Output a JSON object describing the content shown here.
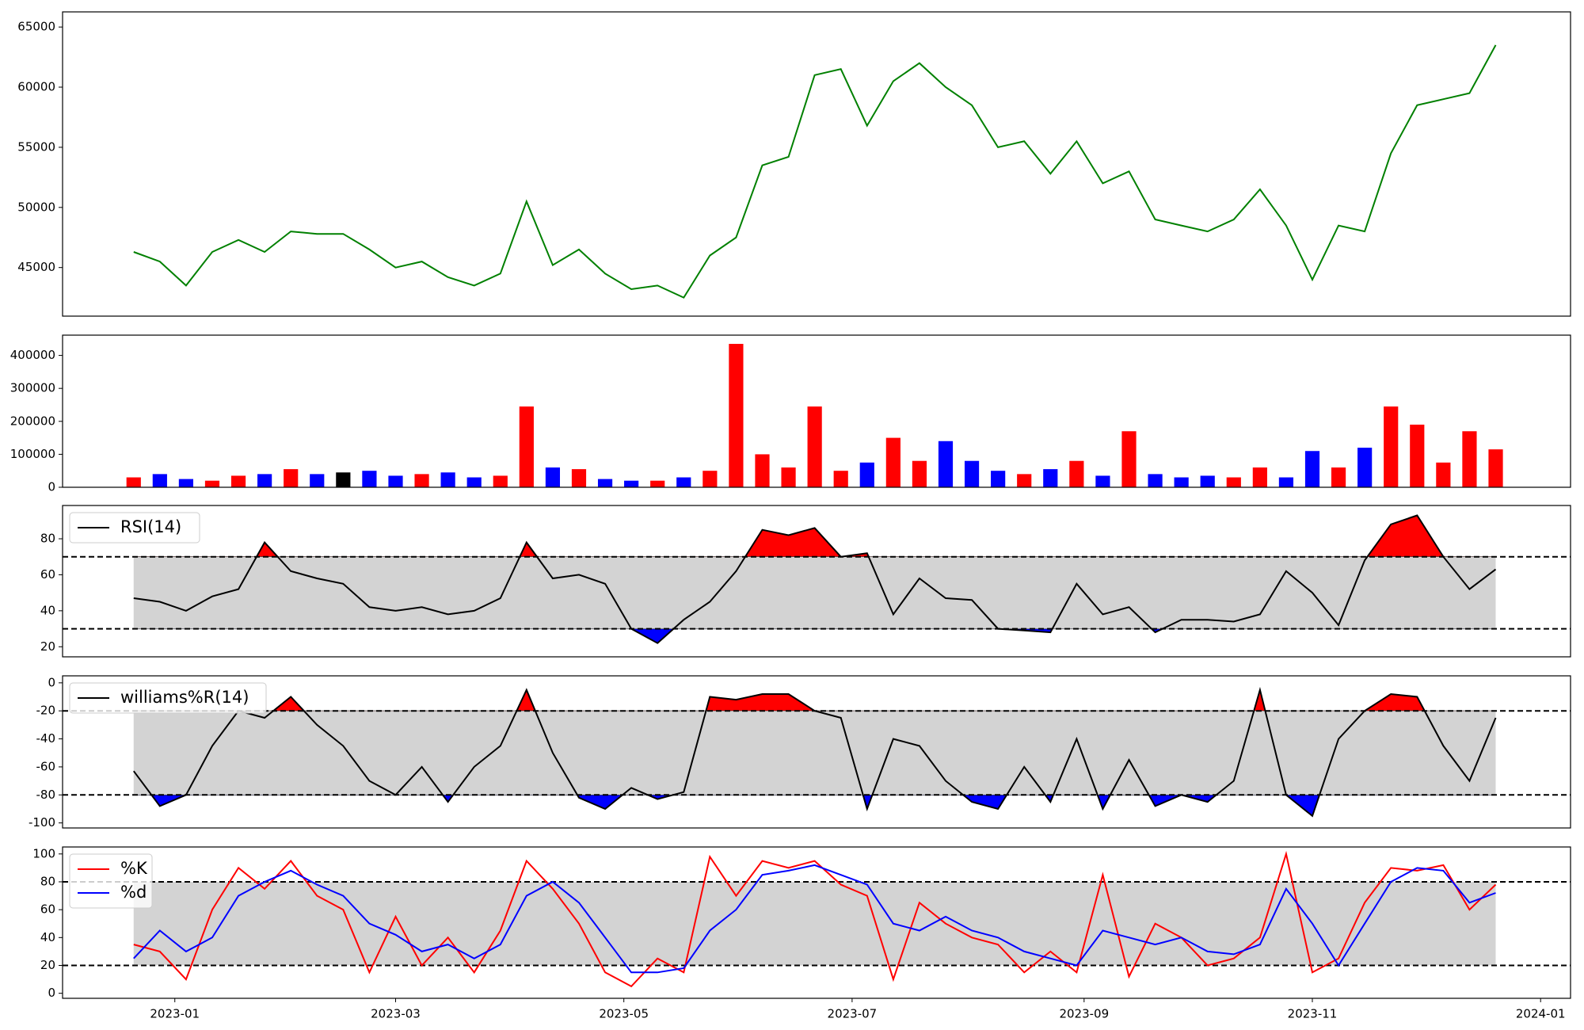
{
  "chart_data": [
    {
      "type": "line",
      "x": [
        "2022-12-21",
        "2022-12-28",
        "2023-01-04",
        "2023-01-11",
        "2023-01-18",
        "2023-01-25",
        "2023-02-01",
        "2023-02-08",
        "2023-02-15",
        "2023-02-22",
        "2023-03-01",
        "2023-03-08",
        "2023-03-15",
        "2023-03-22",
        "2023-03-29",
        "2023-04-05",
        "2023-04-12",
        "2023-04-19",
        "2023-04-26",
        "2023-05-03",
        "2023-05-10",
        "2023-05-17",
        "2023-05-24",
        "2023-05-31",
        "2023-06-07",
        "2023-06-14",
        "2023-06-21",
        "2023-06-28",
        "2023-07-05",
        "2023-07-12",
        "2023-07-19",
        "2023-07-26",
        "2023-08-02",
        "2023-08-09",
        "2023-08-16",
        "2023-08-23",
        "2023-08-30",
        "2023-09-06",
        "2023-09-13",
        "2023-09-20",
        "2023-09-27",
        "2023-10-04",
        "2023-10-11",
        "2023-10-18",
        "2023-10-25",
        "2023-11-01",
        "2023-11-08",
        "2023-11-15",
        "2023-11-22",
        "2023-11-29",
        "2023-12-06",
        "2023-12-13",
        "2023-12-20"
      ],
      "values": [
        46300,
        45500,
        43500,
        46300,
        47300,
        46300,
        48000,
        47800,
        47800,
        46500,
        45000,
        45500,
        44200,
        43500,
        44500,
        50500,
        45200,
        46500,
        44500,
        43200,
        43500,
        42500,
        46000,
        47500,
        53500,
        54200,
        61000,
        61500,
        56800,
        60500,
        62000,
        60000,
        58500,
        55000,
        55500,
        52800,
        55500,
        52000,
        53000,
        49000,
        48500,
        48000,
        49000,
        51500,
        48500,
        44000,
        48500,
        48000,
        54500,
        58500,
        59000,
        59500,
        63500
      ],
      "color": "green",
      "xlim": [
        "2022-12-02",
        "2024-01-09"
      ],
      "ylim": [
        40960,
        66260
      ],
      "yticks": [
        45000,
        50000,
        55000,
        60000,
        65000
      ]
    },
    {
      "type": "bar",
      "x": [
        "2022-12-21",
        "2022-12-28",
        "2023-01-04",
        "2023-01-11",
        "2023-01-18",
        "2023-01-25",
        "2023-02-01",
        "2023-02-08",
        "2023-02-15",
        "2023-02-22",
        "2023-03-01",
        "2023-03-08",
        "2023-03-15",
        "2023-03-22",
        "2023-03-29",
        "2023-04-05",
        "2023-04-12",
        "2023-04-19",
        "2023-04-26",
        "2023-05-03",
        "2023-05-10",
        "2023-05-17",
        "2023-05-24",
        "2023-05-31",
        "2023-06-07",
        "2023-06-14",
        "2023-06-21",
        "2023-06-28",
        "2023-07-05",
        "2023-07-12",
        "2023-07-19",
        "2023-07-26",
        "2023-08-02",
        "2023-08-09",
        "2023-08-16",
        "2023-08-23",
        "2023-08-30",
        "2023-09-06",
        "2023-09-13",
        "2023-09-20",
        "2023-09-27",
        "2023-10-04",
        "2023-10-11",
        "2023-10-18",
        "2023-10-25",
        "2023-11-01",
        "2023-11-08",
        "2023-11-15",
        "2023-11-22",
        "2023-11-29",
        "2023-12-06",
        "2023-12-13",
        "2023-12-20"
      ],
      "values": [
        30000,
        40000,
        25000,
        20000,
        35000,
        40000,
        55000,
        40000,
        45000,
        50000,
        35000,
        40000,
        45000,
        30000,
        35000,
        245000,
        60000,
        55000,
        25000,
        20000,
        20000,
        30000,
        50000,
        435000,
        100000,
        60000,
        245000,
        50000,
        75000,
        150000,
        80000,
        140000,
        80000,
        50000,
        40000,
        55000,
        80000,
        35000,
        170000,
        40000,
        30000,
        35000,
        30000,
        60000,
        30000,
        110000,
        60000,
        120000,
        245000,
        190000,
        75000,
        170000,
        115000
      ],
      "colors": [
        "red",
        "blue",
        "blue",
        "red",
        "red",
        "blue",
        "red",
        "blue",
        "black",
        "blue",
        "blue",
        "red",
        "blue",
        "blue",
        "red",
        "red",
        "blue",
        "red",
        "blue",
        "blue",
        "red",
        "blue",
        "red",
        "red",
        "red",
        "red",
        "red",
        "red",
        "blue",
        "red",
        "red",
        "blue",
        "blue",
        "blue",
        "red",
        "blue",
        "red",
        "blue",
        "red",
        "blue",
        "blue",
        "blue",
        "red",
        "red",
        "blue",
        "blue",
        "red",
        "blue",
        "red",
        "red",
        "red",
        "red",
        "red"
      ],
      "xlim": [
        "2022-12-02",
        "2024-01-09"
      ],
      "ylim": [
        0,
        461500
      ],
      "yticks": [
        0,
        100000,
        200000,
        300000,
        400000
      ]
    },
    {
      "type": "oscillator",
      "x": [
        "2022-12-21",
        "2022-12-28",
        "2023-01-04",
        "2023-01-11",
        "2023-01-18",
        "2023-01-25",
        "2023-02-01",
        "2023-02-08",
        "2023-02-15",
        "2023-02-22",
        "2023-03-01",
        "2023-03-08",
        "2023-03-15",
        "2023-03-22",
        "2023-03-29",
        "2023-04-05",
        "2023-04-12",
        "2023-04-19",
        "2023-04-26",
        "2023-05-03",
        "2023-05-10",
        "2023-05-17",
        "2023-05-24",
        "2023-05-31",
        "2023-06-07",
        "2023-06-14",
        "2023-06-21",
        "2023-06-28",
        "2023-07-05",
        "2023-07-12",
        "2023-07-19",
        "2023-07-26",
        "2023-08-02",
        "2023-08-09",
        "2023-08-16",
        "2023-08-23",
        "2023-08-30",
        "2023-09-06",
        "2023-09-13",
        "2023-09-20",
        "2023-09-27",
        "2023-10-04",
        "2023-10-11",
        "2023-10-18",
        "2023-10-25",
        "2023-11-01",
        "2023-11-08",
        "2023-11-15",
        "2023-11-22",
        "2023-11-29",
        "2023-12-06",
        "2023-12-13",
        "2023-12-20"
      ],
      "series": [
        {
          "name": "RSI(14)",
          "color": "black",
          "values": [
            47,
            45,
            40,
            48,
            52,
            78,
            62,
            58,
            55,
            42,
            40,
            42,
            38,
            40,
            47,
            78,
            58,
            60,
            55,
            30,
            22,
            35,
            45,
            62,
            85,
            82,
            86,
            70,
            72,
            38,
            58,
            47,
            46,
            30,
            29,
            28,
            55,
            38,
            42,
            28,
            35,
            35,
            34,
            38,
            62,
            50,
            32,
            68,
            88,
            93,
            70,
            52,
            63
          ]
        }
      ],
      "upper": 70,
      "lower": 30,
      "fill_extremes": true,
      "legend": "upper left",
      "xlim": [
        "2022-12-02",
        "2024-01-09"
      ],
      "ylim": [
        14.4,
        98.5
      ],
      "yticks": [
        20,
        40,
        60,
        80
      ]
    },
    {
      "type": "oscillator",
      "x": [
        "2022-12-21",
        "2022-12-28",
        "2023-01-04",
        "2023-01-11",
        "2023-01-18",
        "2023-01-25",
        "2023-02-01",
        "2023-02-08",
        "2023-02-15",
        "2023-02-22",
        "2023-03-01",
        "2023-03-08",
        "2023-03-15",
        "2023-03-22",
        "2023-03-29",
        "2023-04-05",
        "2023-04-12",
        "2023-04-19",
        "2023-04-26",
        "2023-05-03",
        "2023-05-10",
        "2023-05-17",
        "2023-05-24",
        "2023-05-31",
        "2023-06-07",
        "2023-06-14",
        "2023-06-21",
        "2023-06-28",
        "2023-07-05",
        "2023-07-12",
        "2023-07-19",
        "2023-07-26",
        "2023-08-02",
        "2023-08-09",
        "2023-08-16",
        "2023-08-23",
        "2023-08-30",
        "2023-09-06",
        "2023-09-13",
        "2023-09-20",
        "2023-09-27",
        "2023-10-04",
        "2023-10-11",
        "2023-10-18",
        "2023-10-25",
        "2023-11-01",
        "2023-11-08",
        "2023-11-15",
        "2023-11-22",
        "2023-11-29",
        "2023-12-06",
        "2023-12-13",
        "2023-12-20"
      ],
      "series": [
        {
          "name": "williams%R(14)",
          "color": "black",
          "values": [
            -63,
            -88,
            -80,
            -45,
            -20,
            -25,
            -10,
            -30,
            -45,
            -70,
            -80,
            -60,
            -85,
            -60,
            -45,
            -5,
            -50,
            -82,
            -90,
            -75,
            -83,
            -78,
            -10,
            -12,
            -8,
            -8,
            -20,
            -25,
            -90,
            -40,
            -45,
            -70,
            -85,
            -90,
            -60,
            -85,
            -40,
            -90,
            -55,
            -88,
            -80,
            -85,
            -70,
            -5,
            -80,
            -95,
            -40,
            -20,
            -8,
            -10,
            -45,
            -70,
            -25
          ]
        }
      ],
      "upper": -20,
      "lower": -80,
      "fill_extremes": true,
      "legend": "upper left",
      "xlim": [
        "2022-12-02",
        "2024-01-09"
      ],
      "ylim": [
        -103.6,
        5
      ],
      "yticks": [
        -100,
        -80,
        -60,
        -40,
        -20,
        0
      ]
    },
    {
      "type": "oscillator",
      "x": [
        "2022-12-21",
        "2022-12-28",
        "2023-01-04",
        "2023-01-11",
        "2023-01-18",
        "2023-01-25",
        "2023-02-01",
        "2023-02-08",
        "2023-02-15",
        "2023-02-22",
        "2023-03-01",
        "2023-03-08",
        "2023-03-15",
        "2023-03-22",
        "2023-03-29",
        "2023-04-05",
        "2023-04-12",
        "2023-04-19",
        "2023-04-26",
        "2023-05-03",
        "2023-05-10",
        "2023-05-17",
        "2023-05-24",
        "2023-05-31",
        "2023-06-07",
        "2023-06-14",
        "2023-06-21",
        "2023-06-28",
        "2023-07-05",
        "2023-07-12",
        "2023-07-19",
        "2023-07-26",
        "2023-08-02",
        "2023-08-09",
        "2023-08-16",
        "2023-08-23",
        "2023-08-30",
        "2023-09-06",
        "2023-09-13",
        "2023-09-20",
        "2023-09-27",
        "2023-10-04",
        "2023-10-11",
        "2023-10-18",
        "2023-10-25",
        "2023-11-01",
        "2023-11-08",
        "2023-11-15",
        "2023-11-22",
        "2023-11-29",
        "2023-12-06",
        "2023-12-13",
        "2023-12-20"
      ],
      "series": [
        {
          "name": "%K",
          "color": "red",
          "values": [
            35,
            30,
            10,
            60,
            90,
            75,
            95,
            70,
            60,
            15,
            55,
            20,
            40,
            15,
            45,
            95,
            75,
            50,
            15,
            5,
            25,
            15,
            98,
            70,
            95,
            90,
            95,
            78,
            70,
            10,
            65,
            50,
            40,
            35,
            15,
            30,
            15,
            85,
            12,
            50,
            40,
            20,
            25,
            40,
            100,
            15,
            25,
            65,
            90,
            88,
            92,
            60,
            78
          ]
        },
        {
          "name": "%d",
          "color": "blue",
          "values": [
            25,
            45,
            30,
            40,
            70,
            80,
            88,
            78,
            70,
            50,
            42,
            30,
            35,
            25,
            35,
            70,
            80,
            65,
            40,
            15,
            15,
            18,
            45,
            60,
            85,
            88,
            92,
            85,
            78,
            50,
            45,
            55,
            45,
            40,
            30,
            25,
            20,
            45,
            40,
            35,
            40,
            30,
            28,
            35,
            75,
            50,
            20,
            50,
            80,
            90,
            88,
            65,
            72
          ]
        }
      ],
      "upper": 80,
      "lower": 20,
      "fill_extremes": false,
      "legend": "upper left",
      "xlim": [
        "2022-12-02",
        "2024-01-09"
      ],
      "ylim": [
        -3.6,
        105
      ],
      "yticks": [
        0,
        20,
        40,
        60,
        80,
        100
      ],
      "xticks": [
        {
          "value": "2023-01-01",
          "label": "2023-01"
        },
        {
          "value": "2023-03-01",
          "label": "2023-03"
        },
        {
          "value": "2023-05-01",
          "label": "2023-05"
        },
        {
          "value": "2023-07-01",
          "label": "2023-07"
        },
        {
          "value": "2023-09-01",
          "label": "2023-09"
        },
        {
          "value": "2023-11-01",
          "label": "2023-11"
        },
        {
          "value": "2024-01-01",
          "label": "2024-01"
        }
      ]
    }
  ]
}
